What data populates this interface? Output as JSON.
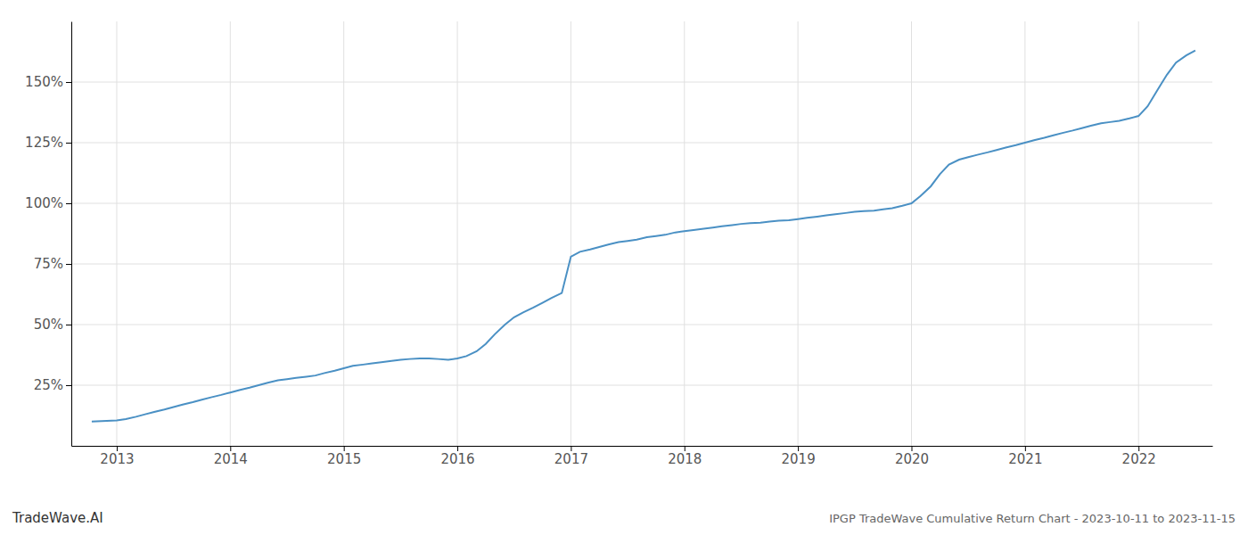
{
  "chart_data": {
    "type": "line",
    "title": "IPGP TradeWave Cumulative Return Chart - 2023-10-11 to 2023-11-15",
    "annotations": [
      "TradeWave.AI"
    ],
    "color": "#4a90c4",
    "grid": true,
    "x": [
      2012.78,
      2013.0,
      2013.08,
      2013.17,
      2013.25,
      2013.33,
      2013.42,
      2013.5,
      2013.58,
      2013.67,
      2013.75,
      2013.83,
      2013.92,
      2014.0,
      2014.08,
      2014.17,
      2014.25,
      2014.33,
      2014.42,
      2014.5,
      2014.58,
      2014.67,
      2014.75,
      2014.83,
      2014.92,
      2015.0,
      2015.08,
      2015.17,
      2015.25,
      2015.33,
      2015.42,
      2015.5,
      2015.58,
      2015.67,
      2015.75,
      2015.83,
      2015.92,
      2016.0,
      2016.08,
      2016.17,
      2016.25,
      2016.33,
      2016.42,
      2016.5,
      2016.58,
      2016.67,
      2016.75,
      2016.83,
      2016.92,
      2017.0,
      2017.08,
      2017.17,
      2017.25,
      2017.33,
      2017.42,
      2017.5,
      2017.58,
      2017.67,
      2017.75,
      2017.83,
      2017.92,
      2018.0,
      2018.08,
      2018.17,
      2018.25,
      2018.33,
      2018.42,
      2018.5,
      2018.58,
      2018.67,
      2018.75,
      2018.83,
      2018.92,
      2019.0,
      2019.08,
      2019.17,
      2019.25,
      2019.33,
      2019.42,
      2019.5,
      2019.58,
      2019.67,
      2019.75,
      2019.83,
      2019.92,
      2020.0,
      2020.08,
      2020.17,
      2020.25,
      2020.33,
      2020.42,
      2020.5,
      2020.58,
      2020.67,
      2020.75,
      2020.83,
      2020.92,
      2021.0,
      2021.08,
      2021.17,
      2021.25,
      2021.33,
      2021.42,
      2021.5,
      2021.58,
      2021.67,
      2021.75,
      2021.83,
      2021.92,
      2022.0,
      2022.08,
      2022.17,
      2022.25,
      2022.33,
      2022.42,
      2022.5
    ],
    "values": [
      10,
      10.5,
      11,
      12,
      13,
      14,
      15,
      16,
      17,
      18,
      19,
      20,
      21,
      22,
      23,
      24,
      25,
      26,
      27,
      27.5,
      28,
      28.5,
      29,
      30,
      31,
      32,
      33,
      33.5,
      34,
      34.5,
      35,
      35.5,
      35.8,
      36,
      36,
      35.8,
      35.5,
      36,
      37,
      39,
      42,
      46,
      50,
      53,
      55,
      57,
      59,
      61,
      63,
      78,
      80,
      81,
      82,
      83,
      84,
      84.5,
      85,
      86,
      86.5,
      87,
      88,
      88.5,
      89,
      89.5,
      90,
      90.5,
      91,
      91.5,
      91.8,
      92,
      92.5,
      92.8,
      93,
      93.5,
      94,
      94.5,
      95,
      95.5,
      96,
      96.5,
      96.8,
      97,
      97.5,
      98,
      99,
      100,
      103,
      107,
      112,
      116,
      118,
      119,
      120,
      121,
      122,
      123,
      124,
      125,
      126,
      127,
      128,
      129,
      130,
      131,
      132,
      133,
      133.5,
      134,
      135,
      136,
      140,
      147,
      153,
      158,
      161,
      163
    ],
    "xlim": [
      2012.6,
      2022.65
    ],
    "xticks": [
      2013,
      2014,
      2015,
      2016,
      2017,
      2018,
      2019,
      2020,
      2021,
      2022
    ],
    "ylim": [
      0,
      175
    ],
    "yticks": [
      {
        "value": 25,
        "label": "25%"
      },
      {
        "value": 50,
        "label": "50%"
      },
      {
        "value": 75,
        "label": "75%"
      },
      {
        "value": 100,
        "label": "100%"
      },
      {
        "value": 125,
        "label": "125%"
      },
      {
        "value": 150,
        "label": "150%"
      }
    ]
  }
}
